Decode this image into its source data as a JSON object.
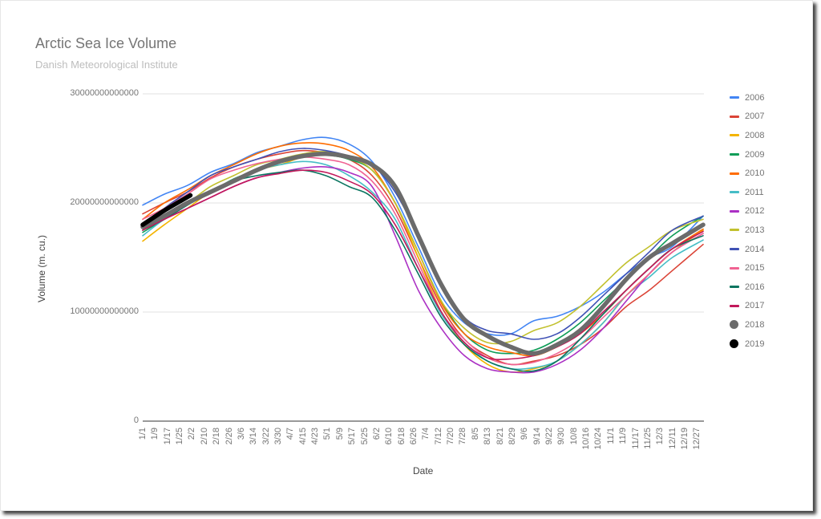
{
  "header": {
    "title": "Arctic Sea Ice Volume",
    "subtitle": "Danish Meteorological Institute"
  },
  "axes": {
    "y_label": "Volume (m. cu.)",
    "x_label": "Date",
    "y_ticks": [
      "30000000000000",
      "20000000000000",
      "10000000000000",
      "0"
    ],
    "x_ticks": [
      "1/1",
      "1/9",
      "1/17",
      "1/25",
      "2/2",
      "2/10",
      "2/18",
      "2/26",
      "3/6",
      "3/14",
      "3/22",
      "3/30",
      "4/7",
      "4/15",
      "4/23",
      "5/1",
      "5/9",
      "5/17",
      "5/25",
      "6/2",
      "6/10",
      "6/18",
      "6/26",
      "7/4",
      "7/12",
      "7/20",
      "7/28",
      "8/5",
      "8/13",
      "8/21",
      "8/29",
      "9/6",
      "9/14",
      "9/22",
      "9/30",
      "10/8",
      "10/16",
      "10/24",
      "11/1",
      "11/9",
      "11/17",
      "11/25",
      "12/3",
      "12/11",
      "12/19",
      "12/27"
    ]
  },
  "legend": [
    {
      "label": "2006",
      "color": "#4285f4",
      "marker": "line"
    },
    {
      "label": "2007",
      "color": "#db4437",
      "marker": "line"
    },
    {
      "label": "2008",
      "color": "#f4b400",
      "marker": "line"
    },
    {
      "label": "2009",
      "color": "#0f9d58",
      "marker": "line"
    },
    {
      "label": "2010",
      "color": "#ff6d00",
      "marker": "line"
    },
    {
      "label": "2011",
      "color": "#46bdc6",
      "marker": "line"
    },
    {
      "label": "2012",
      "color": "#ab30c4",
      "marker": "line"
    },
    {
      "label": "2013",
      "color": "#c2c12e",
      "marker": "line"
    },
    {
      "label": "2014",
      "color": "#3f51b5",
      "marker": "line"
    },
    {
      "label": "2015",
      "color": "#f06292",
      "marker": "line"
    },
    {
      "label": "2016",
      "color": "#0b7560",
      "marker": "line"
    },
    {
      "label": "2017",
      "color": "#c2185b",
      "marker": "line"
    },
    {
      "label": "2018",
      "color": "#6b6b6b",
      "marker": "dot"
    },
    {
      "label": "2019",
      "color": "#000000",
      "marker": "dot"
    }
  ],
  "chart_data": {
    "type": "line",
    "title": "Arctic Sea Ice Volume",
    "subtitle": "Danish Meteorological Institute",
    "xlabel": "Date",
    "ylabel": "Volume (m. cu.)",
    "ylim": [
      0,
      30000000000000
    ],
    "y_unit_note": "series values below are in trillions (x 1e12)",
    "grid": true,
    "legend_position": "right",
    "x_day_of_year": [
      1,
      15,
      30,
      45,
      60,
      75,
      90,
      105,
      120,
      135,
      150,
      165,
      180,
      195,
      210,
      225,
      240,
      255,
      270,
      285,
      300,
      315,
      330,
      345,
      365
    ],
    "series": [
      {
        "name": "2006",
        "color": "#4285f4",
        "width": 1.6,
        "values": [
          19.8,
          20.8,
          21.6,
          22.8,
          23.6,
          24.6,
          25.2,
          25.8,
          26.0,
          25.4,
          23.8,
          20.5,
          16.0,
          11.5,
          9.0,
          8.0,
          8.0,
          9.2,
          9.6,
          10.5,
          11.8,
          13.5,
          15.0,
          16.0,
          18.8
        ]
      },
      {
        "name": "2007",
        "color": "#db4437",
        "width": 1.6,
        "values": [
          19.0,
          20.0,
          21.0,
          22.3,
          23.3,
          24.0,
          24.5,
          24.8,
          24.6,
          24.0,
          22.5,
          19.5,
          15.0,
          10.5,
          7.5,
          6.0,
          5.2,
          5.5,
          6.0,
          7.0,
          8.5,
          10.5,
          12.0,
          13.8,
          16.2
        ]
      },
      {
        "name": "2008",
        "color": "#f4b400",
        "width": 1.6,
        "values": [
          16.5,
          18.0,
          19.5,
          21.0,
          22.0,
          23.0,
          23.5,
          24.2,
          24.5,
          24.0,
          23.0,
          20.0,
          15.0,
          10.0,
          7.0,
          5.2,
          4.5,
          4.8,
          5.5,
          7.0,
          9.0,
          11.5,
          13.5,
          15.5,
          17.5
        ]
      },
      {
        "name": "2009",
        "color": "#0f9d58",
        "width": 1.6,
        "values": [
          17.3,
          18.5,
          19.8,
          21.0,
          22.2,
          23.0,
          23.8,
          24.3,
          24.4,
          24.0,
          23.0,
          20.0,
          15.5,
          11.0,
          8.0,
          6.5,
          6.2,
          6.5,
          7.5,
          9.0,
          11.0,
          13.0,
          15.0,
          17.0,
          18.8
        ]
      },
      {
        "name": "2010",
        "color": "#ff6d00",
        "width": 1.6,
        "values": [
          18.5,
          20.0,
          21.2,
          22.5,
          23.5,
          24.5,
          25.2,
          25.5,
          25.4,
          24.8,
          23.3,
          20.0,
          15.5,
          10.8,
          8.0,
          6.8,
          6.3,
          6.0,
          6.8,
          8.0,
          9.8,
          12.0,
          14.0,
          15.8,
          17.6
        ]
      },
      {
        "name": "2011",
        "color": "#46bdc6",
        "width": 1.6,
        "values": [
          17.0,
          18.5,
          19.8,
          21.0,
          22.0,
          23.0,
          23.5,
          23.8,
          23.5,
          22.5,
          21.0,
          18.5,
          14.0,
          9.8,
          7.2,
          5.5,
          4.8,
          4.9,
          5.5,
          7.0,
          9.0,
          11.5,
          13.2,
          15.0,
          16.6
        ]
      },
      {
        "name": "2012",
        "color": "#ab30c4",
        "width": 1.6,
        "values": [
          17.5,
          18.5,
          19.5,
          20.5,
          21.5,
          22.3,
          22.8,
          23.2,
          23.3,
          22.8,
          21.5,
          17.0,
          12.0,
          8.5,
          6.0,
          4.8,
          4.5,
          4.5,
          5.2,
          6.5,
          8.5,
          11.0,
          13.5,
          15.5,
          17.2
        ]
      },
      {
        "name": "2013",
        "color": "#c2c12e",
        "width": 1.6,
        "values": [
          17.5,
          18.8,
          20.0,
          21.5,
          22.5,
          23.5,
          24.0,
          24.5,
          24.7,
          24.2,
          23.0,
          20.0,
          15.5,
          11.0,
          8.5,
          7.2,
          7.3,
          8.3,
          9.0,
          10.5,
          12.5,
          14.5,
          16.0,
          17.5,
          18.5
        ]
      },
      {
        "name": "2014",
        "color": "#3f51b5",
        "width": 1.6,
        "values": [
          17.8,
          19.5,
          21.0,
          22.5,
          23.3,
          24.0,
          24.7,
          25.0,
          24.8,
          24.3,
          23.5,
          21.0,
          17.0,
          12.5,
          9.5,
          8.3,
          8.0,
          7.5,
          8.0,
          9.5,
          11.5,
          13.5,
          15.5,
          17.5,
          18.8
        ]
      },
      {
        "name": "2015",
        "color": "#f06292",
        "width": 1.6,
        "values": [
          18.5,
          19.5,
          20.8,
          22.2,
          23.0,
          23.6,
          24.0,
          24.2,
          24.0,
          23.5,
          22.0,
          19.0,
          14.5,
          10.0,
          7.5,
          5.8,
          5.2,
          5.4,
          6.2,
          7.5,
          9.5,
          11.5,
          13.5,
          15.5,
          17.2
        ]
      },
      {
        "name": "2016",
        "color": "#0b7560",
        "width": 1.6,
        "values": [
          17.5,
          18.5,
          19.8,
          21.0,
          22.0,
          22.5,
          22.8,
          23.0,
          22.5,
          21.5,
          20.5,
          17.5,
          13.5,
          9.5,
          7.0,
          5.5,
          4.8,
          4.6,
          5.5,
          7.5,
          9.8,
          12.0,
          14.0,
          15.8,
          17.0
        ]
      },
      {
        "name": "2017",
        "color": "#c2185b",
        "width": 1.6,
        "values": [
          17.5,
          18.5,
          19.5,
          20.5,
          21.5,
          22.3,
          22.7,
          23.0,
          22.8,
          22.0,
          20.8,
          18.0,
          14.0,
          10.0,
          7.2,
          5.8,
          5.7,
          6.0,
          6.8,
          8.0,
          10.0,
          12.0,
          14.0,
          15.8,
          17.4
        ]
      },
      {
        "name": "2018",
        "color": "#6b6b6b",
        "width": 5.5,
        "values": [
          17.8,
          18.8,
          20.0,
          21.0,
          22.0,
          23.0,
          23.8,
          24.3,
          24.5,
          24.2,
          23.5,
          21.5,
          17.0,
          12.5,
          9.3,
          7.8,
          6.8,
          6.2,
          7.0,
          8.3,
          10.5,
          13.0,
          15.0,
          16.3,
          18.0
        ]
      },
      {
        "name": "2019",
        "color": "#000000",
        "width": 5.5,
        "x_day_of_year": [
          1,
          15,
          32
        ],
        "values": [
          18.0,
          19.3,
          20.7
        ]
      }
    ]
  }
}
